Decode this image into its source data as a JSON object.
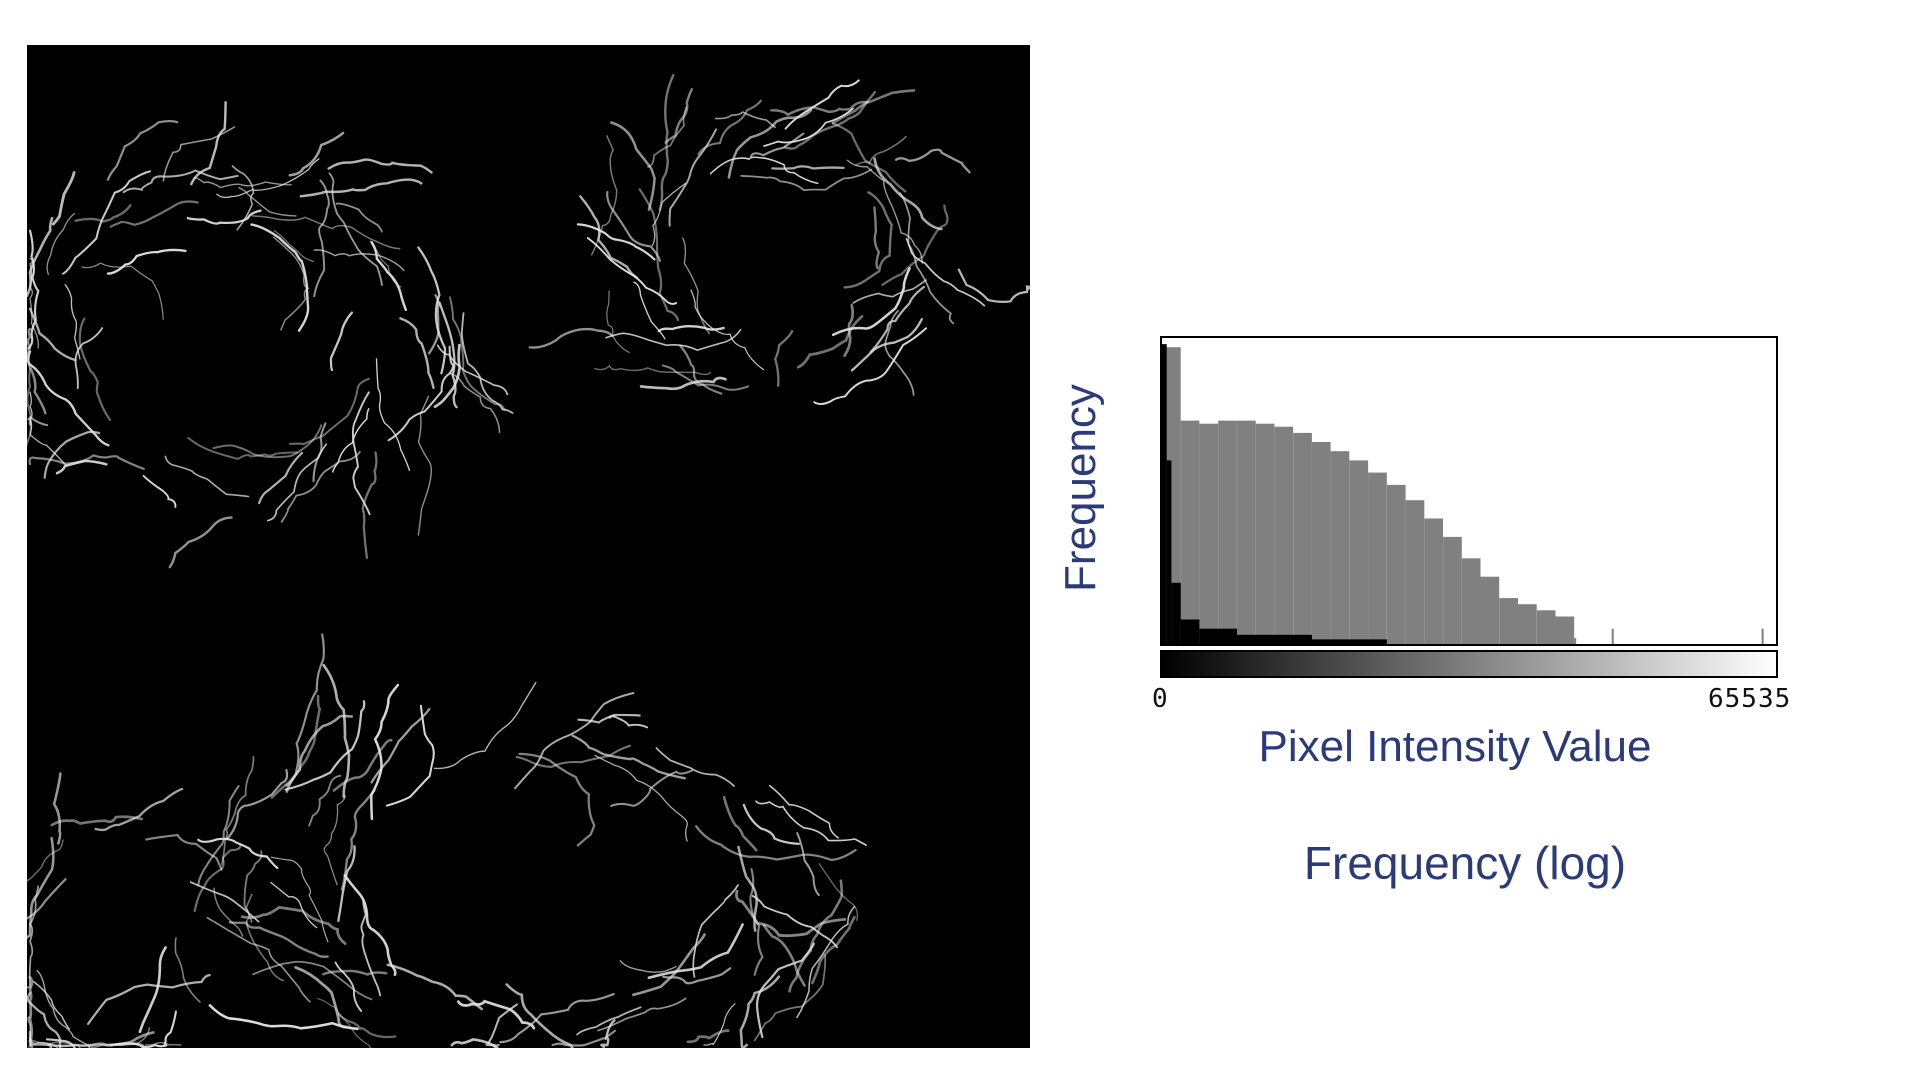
{
  "image": {
    "subject": "fluorescence-micrograph",
    "background": "#000000",
    "foreground": "#e6e6e6"
  },
  "colors": {
    "label_text": "#2b3a78",
    "hist_fill": "#808080",
    "log_hist_fill": "#000000"
  },
  "chart_data": {
    "type": "bar",
    "title": "",
    "xlabel": "Pixel Intensity Value",
    "ylabel": "Frequency",
    "caption": "Frequency (log)",
    "xlim": [
      0,
      65535
    ],
    "x_tick_labels": [
      "0",
      "65535"
    ],
    "y_scale": "log",
    "grid": false,
    "legend": "none",
    "series": [
      {
        "name": "",
        "x": [
          0,
          2000,
          4000,
          6000,
          8000,
          10000,
          12000,
          14000,
          16000,
          18000,
          20000,
          22000,
          24000,
          26000,
          28000,
          30000,
          32000,
          34000,
          36000,
          38000,
          40000,
          42000,
          44000,
          46000,
          48000,
          50000,
          52000,
          54000,
          56000,
          58000,
          60000,
          62000,
          64000
        ],
        "values": [
          0.97,
          0.73,
          0.72,
          0.73,
          0.73,
          0.72,
          0.71,
          0.69,
          0.66,
          0.63,
          0.6,
          0.56,
          0.52,
          0.47,
          0.41,
          0.35,
          0.28,
          0.22,
          0.15,
          0.13,
          0.11,
          0.09,
          0.02,
          0.0,
          0.05,
          0.0,
          0.0,
          0.0,
          0.0,
          0.0,
          0.0,
          0.0,
          0.05
        ]
      },
      {
        "name": "",
        "x": [
          0,
          500,
          1000,
          2000,
          4000,
          8000,
          16000,
          24000
        ],
        "values": [
          0.98,
          0.6,
          0.2,
          0.08,
          0.05,
          0.03,
          0.015,
          0.0
        ]
      }
    ]
  },
  "gradient_bar": {
    "from": "#000000",
    "to": "#ffffff"
  }
}
